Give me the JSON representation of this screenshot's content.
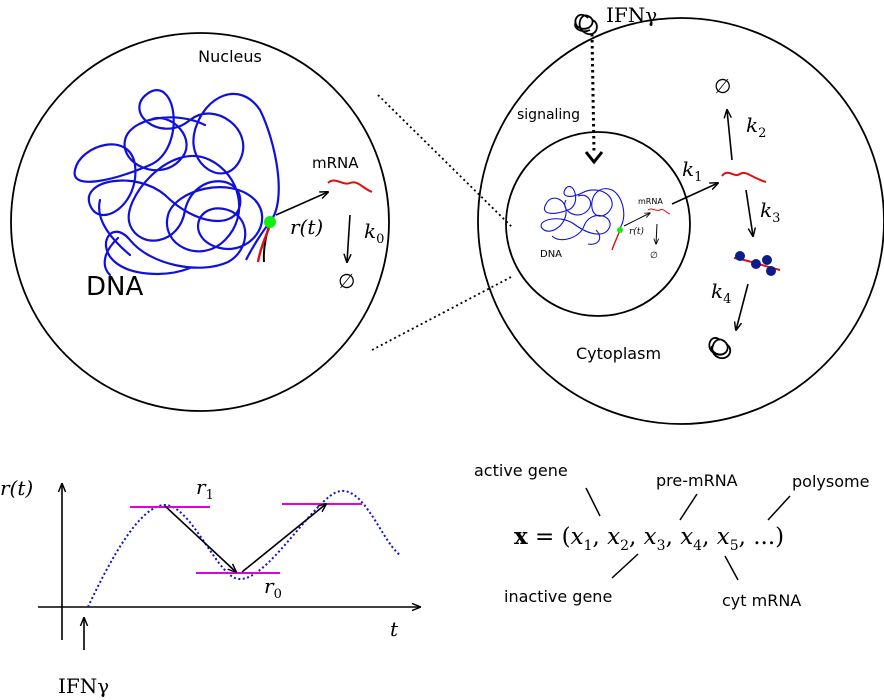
{
  "colors": {
    "dna": "#1010dd",
    "mrna": "#dd1010",
    "site": "#11ee11",
    "band": "#e000e0",
    "traj": "#1010dd",
    "polysome_dot": "#0b1d8a"
  },
  "zoom": {
    "nucleus_label": "Nucleus",
    "dna_label": "DNA",
    "mrna_label": "mRNA",
    "rate_label": "r(t)",
    "k0": "k",
    "k0_sub": "0",
    "empty": "∅"
  },
  "cell": {
    "ifn_label": "IFNγ",
    "signaling_label": "signaling",
    "cytoplasm_label": "Cytoplasm",
    "inner_dna_label": "DNA",
    "inner_mrna_label": "mRNA",
    "inner_rate_label": "r(t)",
    "inner_empty": "∅",
    "k1": "k",
    "k1_sub": "1",
    "k2": "k",
    "k2_sub": "2",
    "k3": "k",
    "k3_sub": "3",
    "k4": "k",
    "k4_sub": "4",
    "empty": "∅"
  },
  "graph": {
    "ylabel": "r(t)",
    "xlabel": "t",
    "r1": "r",
    "r1_sub": "1",
    "r0": "r",
    "r0_sub": "0",
    "ifn_label": "IFNγ"
  },
  "state": {
    "bold_x": "x",
    "equals": " = (",
    "terms": [
      {
        "v": "x",
        "sub": "1"
      },
      {
        "v": "x",
        "sub": "2"
      },
      {
        "v": "x",
        "sub": "3"
      },
      {
        "v": "x",
        "sub": "4"
      },
      {
        "v": "x",
        "sub": "5"
      }
    ],
    "comma": ", ",
    "tail": ", ...)",
    "labels": {
      "active_gene": "active gene",
      "pre_mrna": "pre-mRNA",
      "polysome": "polysome",
      "inactive_gene": "inactive gene",
      "cyt_mrna": "cyt mRNA"
    }
  }
}
